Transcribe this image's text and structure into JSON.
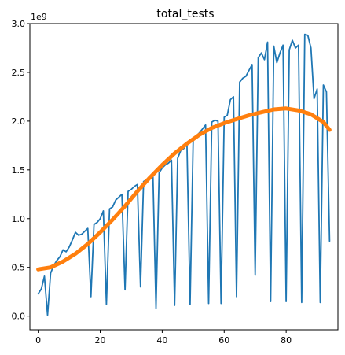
{
  "chart_data": {
    "type": "line",
    "title": "total_tests",
    "xlabel": "",
    "ylabel": "",
    "y_offset_text": "1e9",
    "xlim": [
      -2.7,
      96.7
    ],
    "ylim": [
      -0.14,
      3.0
    ],
    "x_ticks": [
      0,
      20,
      40,
      60,
      80
    ],
    "x_tick_labels": [
      "0",
      "20",
      "40",
      "60",
      "80"
    ],
    "y_ticks": [
      0.0,
      0.5,
      1.0,
      1.5,
      2.0,
      2.5,
      3.0
    ],
    "y_tick_labels": [
      "0.0",
      "0.5",
      "1.0",
      "1.5",
      "2.0",
      "2.5",
      "3.0"
    ],
    "y_unit_multiplier": 1000000000,
    "grid": false,
    "legend": "none",
    "series": [
      {
        "color": "#1f77b4",
        "line_width": 1.8,
        "x": [
          0,
          1,
          2,
          3,
          4,
          5,
          6,
          7,
          8,
          9,
          10,
          11,
          12,
          13,
          14,
          15,
          16,
          17,
          18,
          19,
          20,
          21,
          22,
          23,
          24,
          25,
          26,
          27,
          28,
          29,
          30,
          31,
          32,
          33,
          34,
          35,
          36,
          37,
          38,
          39,
          40,
          41,
          42,
          43,
          44,
          45,
          46,
          47,
          48,
          49,
          50,
          51,
          52,
          53,
          54,
          55,
          56,
          57,
          58,
          59,
          60,
          61,
          62,
          63,
          64,
          65,
          66,
          67,
          68,
          69,
          70,
          71,
          72,
          73,
          74,
          75,
          76,
          77,
          78,
          79,
          80,
          81,
          82,
          83,
          84,
          85,
          86,
          87,
          88,
          89,
          90,
          91,
          92,
          93,
          94
        ],
        "y": [
          0.23,
          0.28,
          0.41,
          0.01,
          0.44,
          0.52,
          0.57,
          0.61,
          0.68,
          0.66,
          0.71,
          0.78,
          0.86,
          0.83,
          0.84,
          0.87,
          0.9,
          0.2,
          0.94,
          0.96,
          1.0,
          1.08,
          0.12,
          1.1,
          1.12,
          1.19,
          1.22,
          1.25,
          0.27,
          1.28,
          1.3,
          1.33,
          1.35,
          0.3,
          1.38,
          1.4,
          1.42,
          1.45,
          0.08,
          1.47,
          1.52,
          1.55,
          1.57,
          1.6,
          0.11,
          1.62,
          1.7,
          1.72,
          1.77,
          0.12,
          1.8,
          1.85,
          1.88,
          1.92,
          1.96,
          0.13,
          1.99,
          2.01,
          2.0,
          0.13,
          2.04,
          2.06,
          2.22,
          2.25,
          0.2,
          2.4,
          2.44,
          2.46,
          2.52,
          2.58,
          0.42,
          2.65,
          2.7,
          2.63,
          2.81,
          0.15,
          2.77,
          2.6,
          2.7,
          2.78,
          0.15,
          2.73,
          2.83,
          2.75,
          2.78,
          0.14,
          2.89,
          2.88,
          2.75,
          2.23,
          2.33,
          0.14,
          2.37,
          2.3,
          0.77
        ]
      },
      {
        "color": "#ff7f0e",
        "line_width": 5,
        "x": [
          0,
          4,
          8,
          12,
          16,
          20,
          24,
          28,
          32,
          36,
          40,
          44,
          48,
          52,
          56,
          60,
          64,
          68,
          72,
          76,
          80,
          84,
          88,
          92,
          94
        ],
        "y": [
          0.48,
          0.5,
          0.56,
          0.64,
          0.74,
          0.86,
          0.99,
          1.13,
          1.28,
          1.42,
          1.55,
          1.67,
          1.77,
          1.86,
          1.93,
          1.98,
          2.02,
          2.06,
          2.09,
          2.12,
          2.13,
          2.11,
          2.07,
          1.99,
          1.91
        ]
      }
    ]
  }
}
